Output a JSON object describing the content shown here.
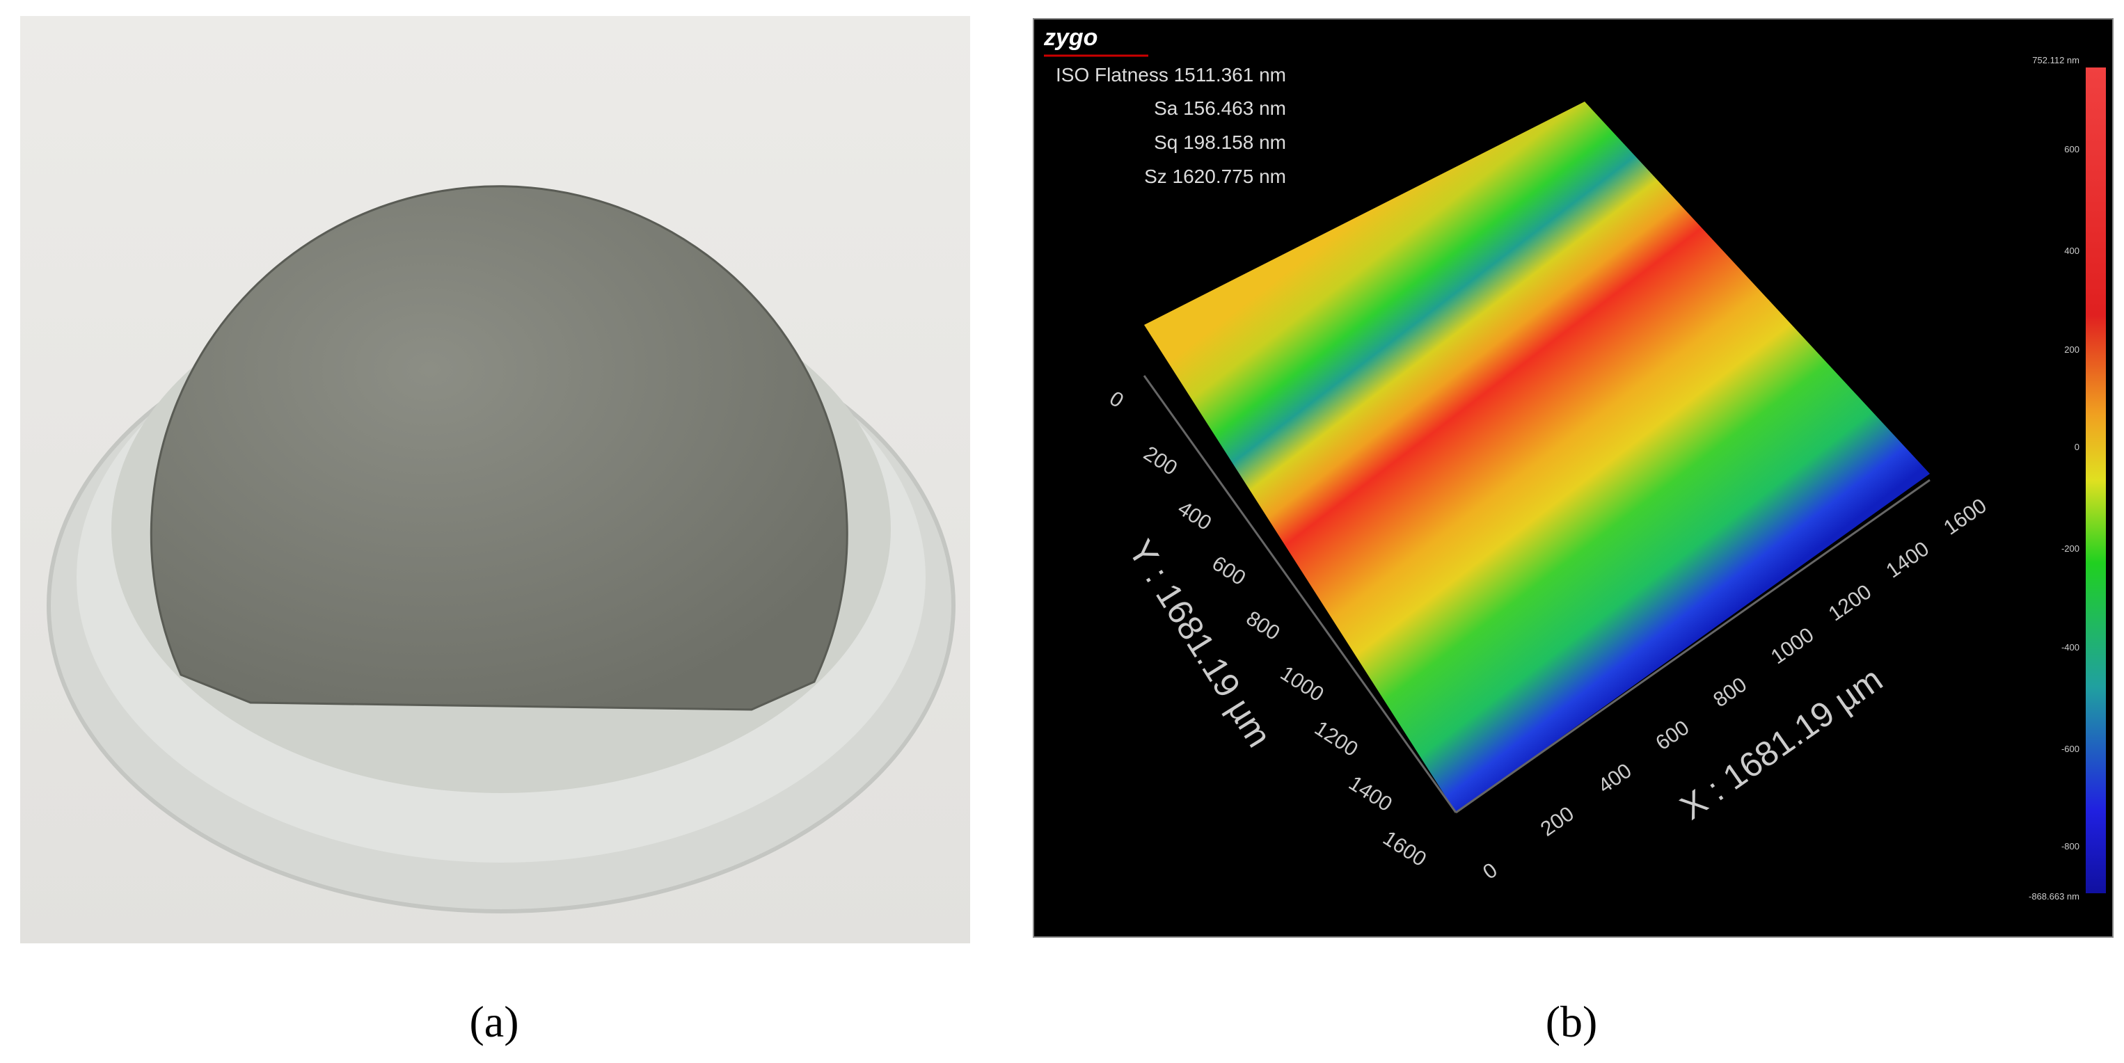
{
  "panel_a": {
    "label": "(a)"
  },
  "panel_b": {
    "label": "(b)",
    "logo": "zygo",
    "stats": [
      "ISO Flatness 1511.361 nm",
      "Sa 156.463 nm",
      "Sq 198.158 nm",
      "Sz 1620.775 nm"
    ],
    "colorbar_labels": [
      "752.112 nm",
      "600",
      "400",
      "200",
      "0",
      "-200",
      "-400",
      "-600",
      "-800",
      "-868.663 nm"
    ],
    "y_axis": {
      "title": "Y : 1681.19 µm",
      "ticks": [
        "0",
        "200",
        "400",
        "600",
        "800",
        "1000",
        "1200",
        "1400",
        "1600"
      ]
    },
    "x_axis": {
      "title": "X : 1681.19 µm",
      "ticks": [
        "0",
        "200",
        "400",
        "600",
        "800",
        "1000",
        "1200",
        "1400",
        "1600"
      ]
    }
  }
}
